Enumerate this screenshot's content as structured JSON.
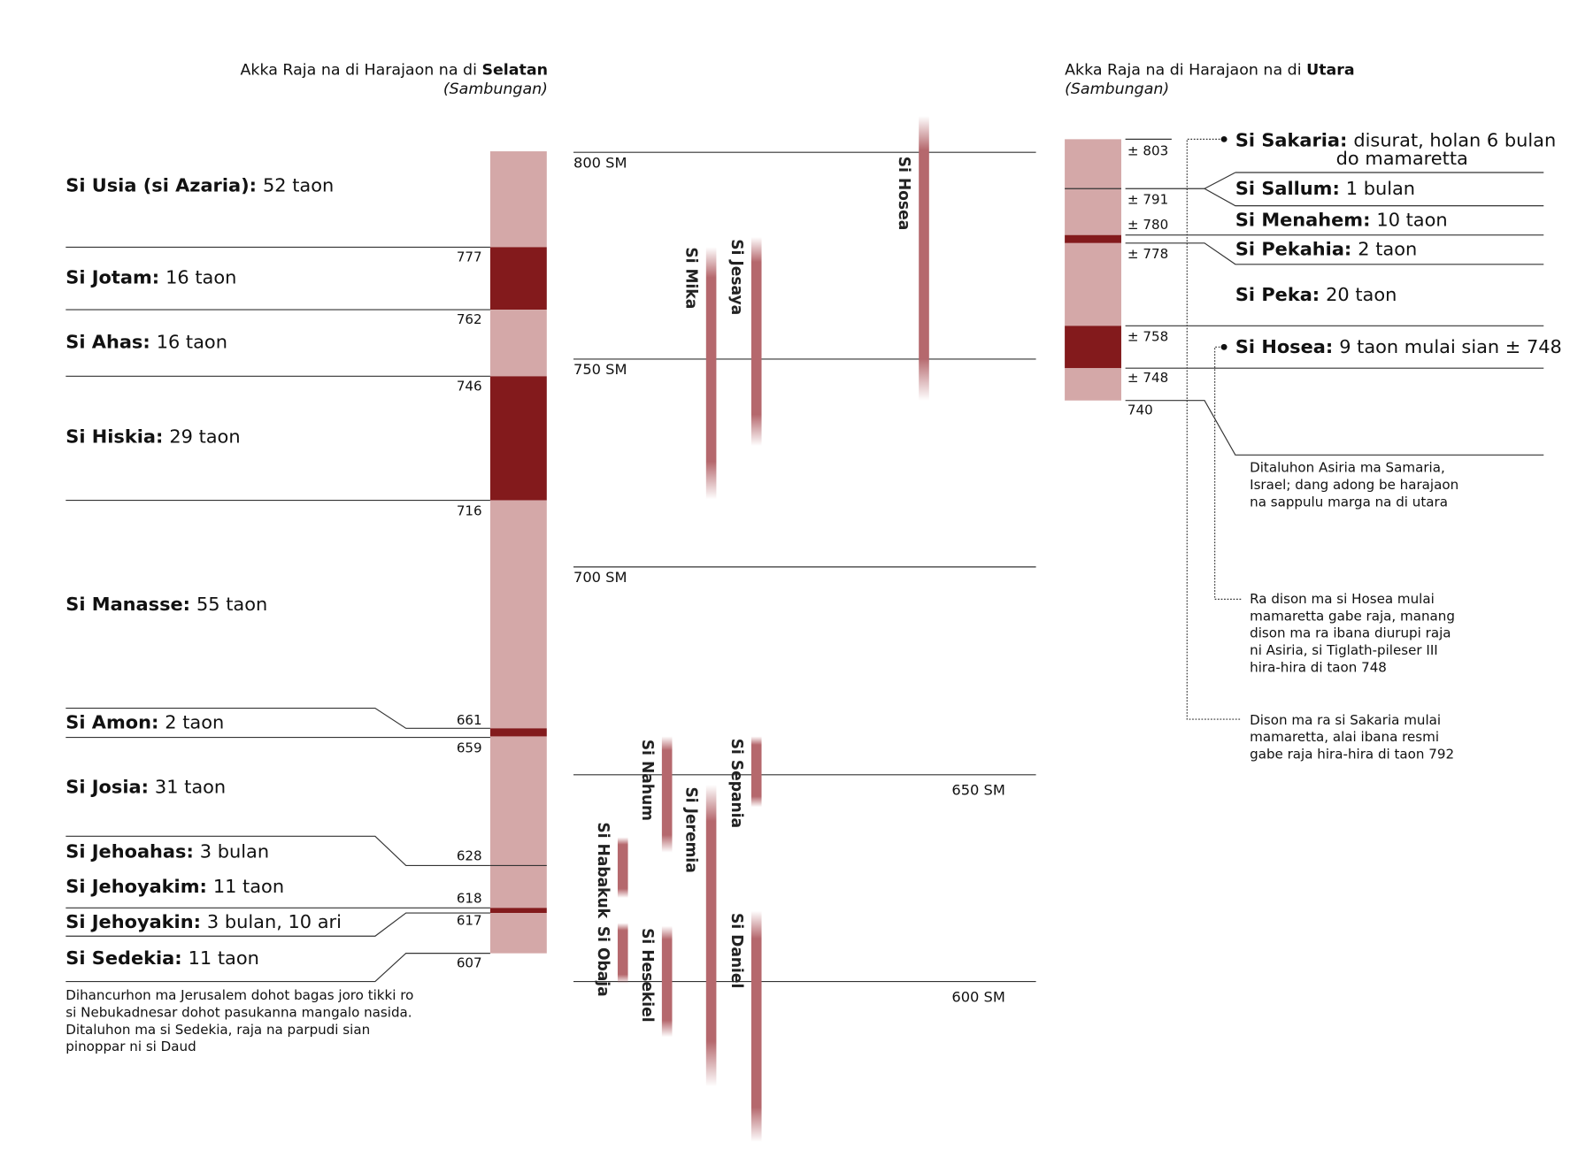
{
  "south": {
    "title": "Akka Raja na di Harajaon na di ",
    "title_bold": "Selatan",
    "subtitle": "(Sambungan)",
    "kings": [
      {
        "name": "Si Usia (si Azaria):",
        "reign": "52 taon"
      },
      {
        "name": "Si Jotam:",
        "reign": "16 taon"
      },
      {
        "name": "Si Ahas:",
        "reign": "16 taon"
      },
      {
        "name": "Si Hiskia:",
        "reign": "29 taon"
      },
      {
        "name": "Si Manasse:",
        "reign": "55 taon"
      },
      {
        "name": "Si Amon:",
        "reign": "2 taon"
      },
      {
        "name": "Si Josia:",
        "reign": "31 taon"
      },
      {
        "name": "Si Jehoahas:",
        "reign": "3 bulan"
      },
      {
        "name": "Si Jehoyakim:",
        "reign": "11 taon"
      },
      {
        "name": "Si Jehoyakin:",
        "reign": "3 bulan, 10 ari"
      },
      {
        "name": "Si Sedekia:",
        "reign": "11 taon"
      }
    ],
    "years": [
      "777",
      "762",
      "746",
      "716",
      "661",
      "659",
      "628",
      "618",
      "617",
      "607"
    ],
    "note": [
      "Dihancurhon ma Jerusalem dohot bagas joro tikki ro",
      "si Nebukadnesar dohot pasukanna mangalo nasida.",
      "Ditaluhon ma si Sedekia, raja na parpudi sian",
      "pinoppar ni si Daud"
    ]
  },
  "eras": [
    "800 SM",
    "750 SM",
    "700 SM",
    "650 SM",
    "600 SM"
  ],
  "prophets": [
    "Si Hosea",
    "Si Mika",
    "Si Jesaya",
    "Si Nahum",
    "Si Sepania",
    "Si Jeremia",
    "Si Habakuk",
    "Si Obaja",
    "Si Hesekiel",
    "Si Daniel"
  ],
  "north": {
    "title": "Akka Raja na di Harajaon na di ",
    "title_bold": "Utara",
    "subtitle": "(Sambungan)",
    "kings": [
      {
        "name": "Si Sakaria:",
        "reign": "disurat, holan 6 bulan",
        "reign_cont": "do mamaretta"
      },
      {
        "name": "Si Sallum:",
        "reign": "1 bulan"
      },
      {
        "name": "Si Menahem:",
        "reign": "10 taon"
      },
      {
        "name": "Si Pekahia:",
        "reign": "2 taon"
      },
      {
        "name": "Si Peka:",
        "reign": "20 taon"
      },
      {
        "name": "Si Hosea:",
        "reign": "9 taon mulai sian ± 748"
      }
    ],
    "years": [
      "± 803",
      "± 791",
      "± 780",
      "± 778",
      "± 758",
      "± 748",
      "740"
    ],
    "notes": [
      [
        "Ditaluhon Asiria ma Samaria,",
        "Israel; dang adong be harajaon",
        "na sappulu marga na di utara"
      ],
      [
        "Ra dison ma si Hosea mulai",
        "mamaretta gabe raja, manang",
        "dison ma ra ibana diurupi raja",
        "ni Asiria, si Tiglath-pileser III",
        "hira-hira di taon 748"
      ],
      [
        "Dison ma ra si Sakaria mulai",
        "mamaretta, alai ibana resmi",
        "gabe raja hira-hira di taon 792"
      ]
    ]
  }
}
